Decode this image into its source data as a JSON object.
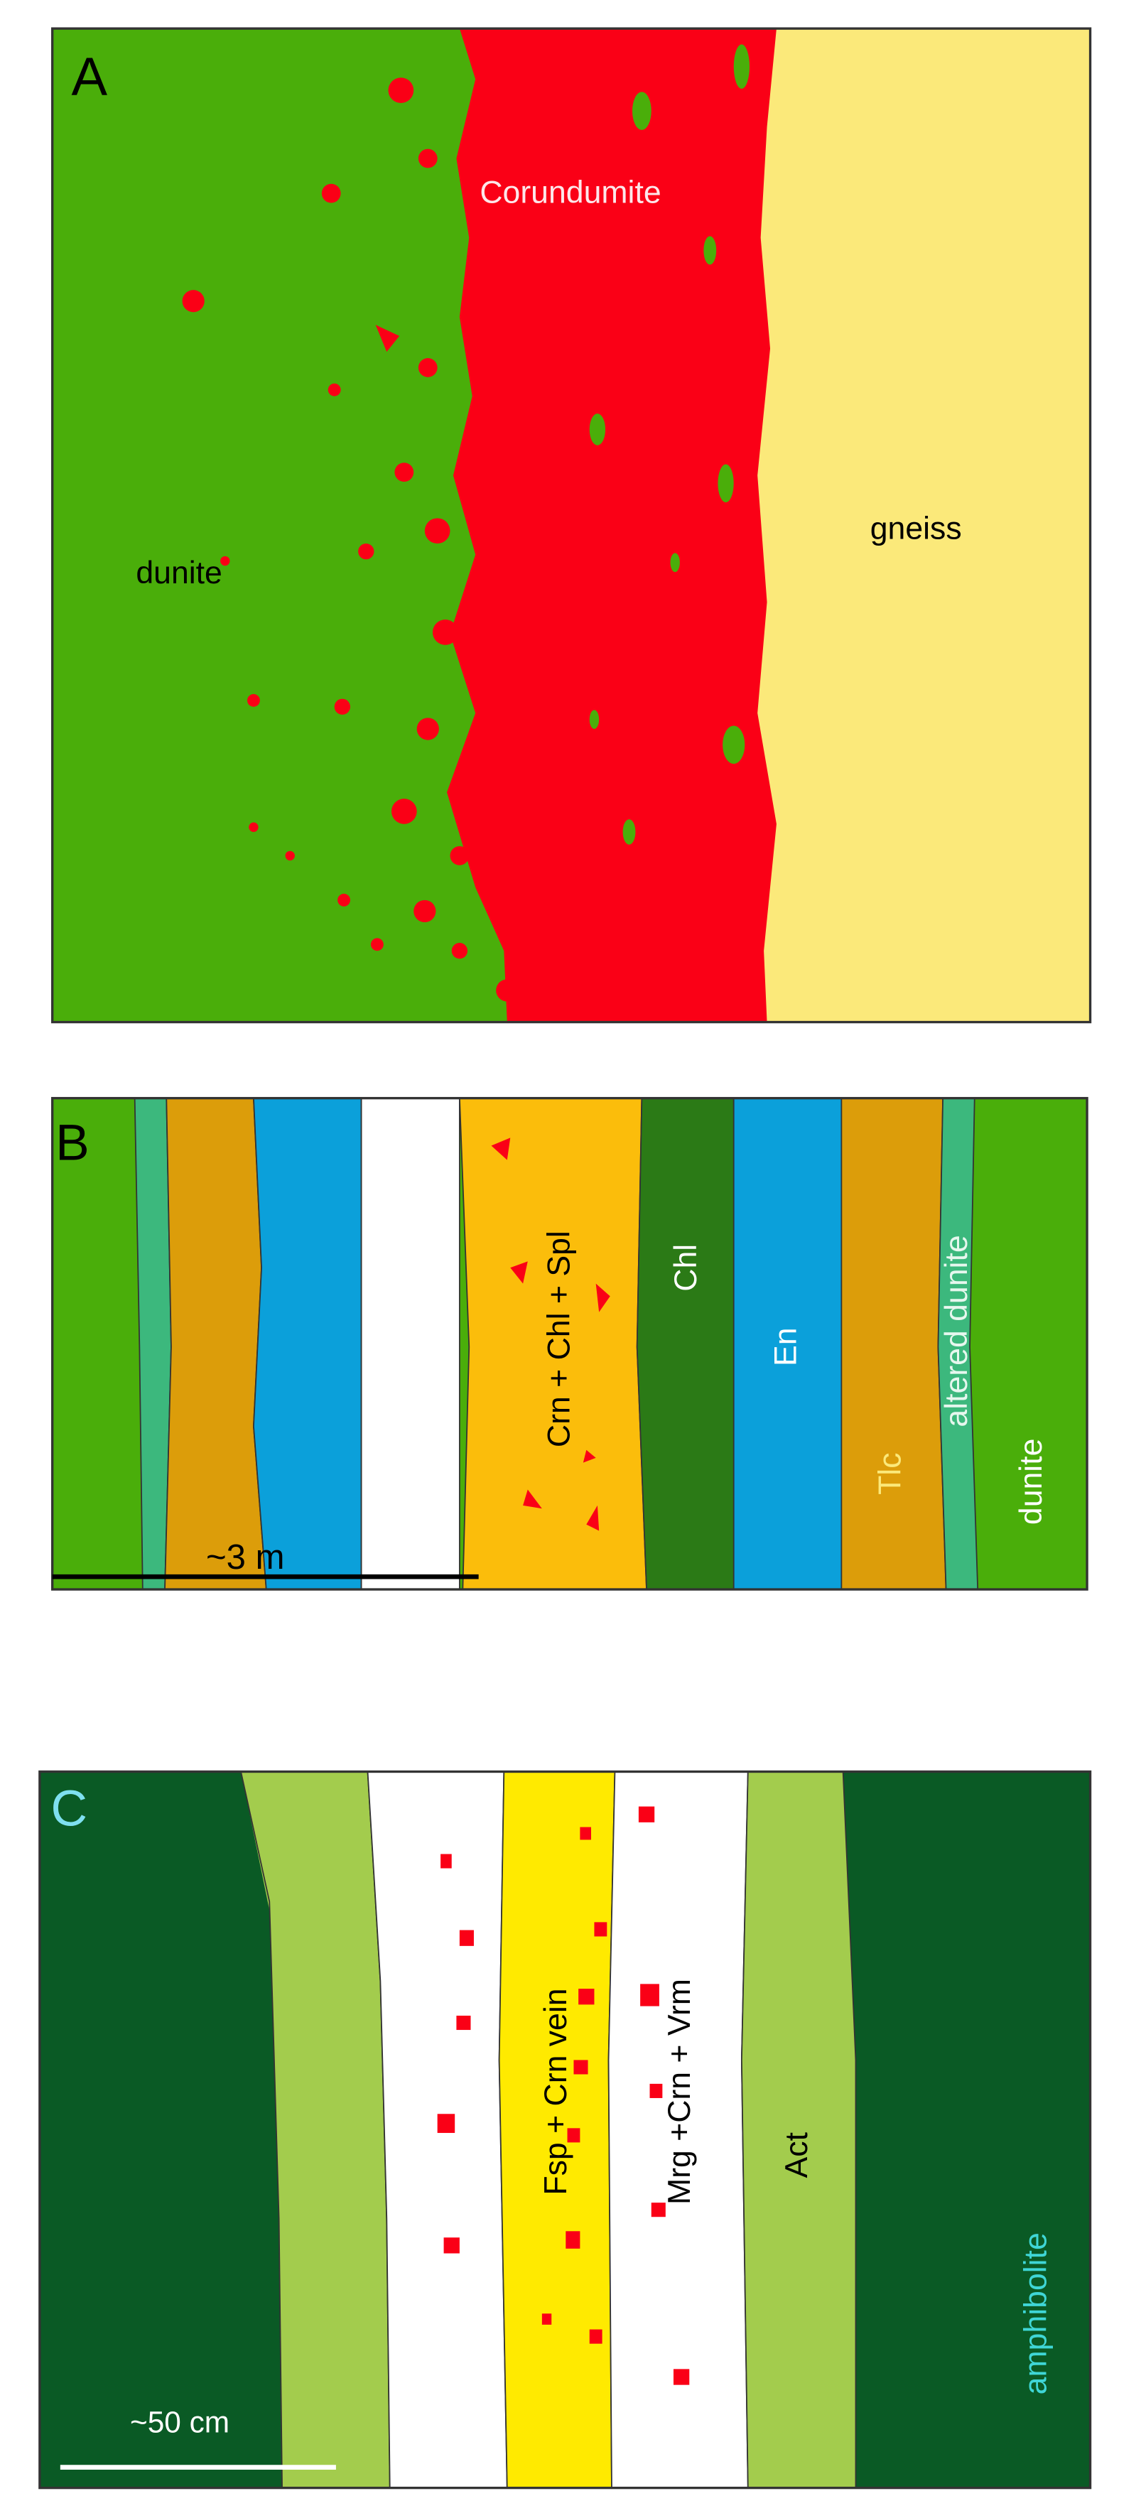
{
  "panel_a": {
    "label": "A",
    "corundumite": "Corundumite",
    "gneiss": "gneiss",
    "dunite": "dunite"
  },
  "panel_b": {
    "label": "B",
    "crn_chl_spl": "Crn + Chl + Spl",
    "chl": "Chl",
    "en": "En",
    "tlc": "Tlc",
    "altered_dunite": "altered dunite",
    "dunite": "dunite",
    "scale": "~3 m"
  },
  "panel_c": {
    "label": "C",
    "fsp_crn_vein": "Fsp + Crn vein",
    "mrg_crn_vrm": "Mrg +Crn + Vrm",
    "act": "Act",
    "amphibolite": "amphibolite",
    "scale": "~50 cm"
  }
}
